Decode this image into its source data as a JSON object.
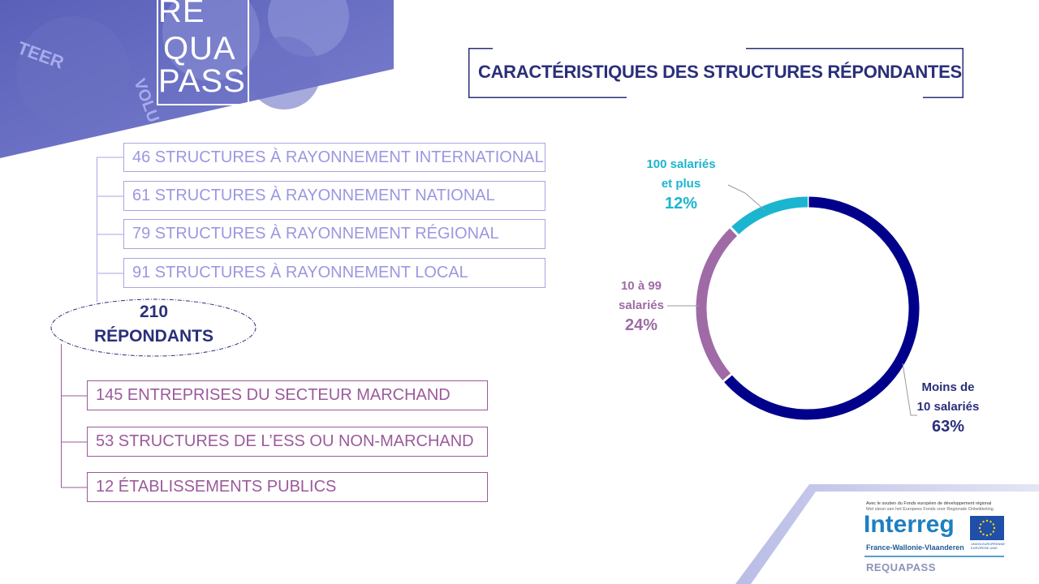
{
  "brand": {
    "logo_lines": [
      "RE",
      "QUA",
      "PASS"
    ],
    "banner_words": [
      "TEER",
      "VOLU"
    ]
  },
  "title": "CARACTÉRISTIQUES DES STRUCTURES RÉPONDANTES",
  "respondents": {
    "count": "210",
    "label": "RÉPONDANTS"
  },
  "reach": [
    {
      "label": "46 STRUCTURES À RAYONNEMENT INTERNATIONAL"
    },
    {
      "label": "61 STRUCTURES À RAYONNEMENT NATIONAL"
    },
    {
      "label": "79 STRUCTURES À RAYONNEMENT RÉGIONAL"
    },
    {
      "label": "91 STRUCTURES À RAYONNEMENT LOCAL"
    }
  ],
  "sectors": [
    {
      "label": "145 ENTREPRISES DU SECTEUR MARCHAND"
    },
    {
      "label": "53 STRUCTURES DE L’ESS OU NON-MARCHAND"
    },
    {
      "label": "12 ÉTABLISSEMENTS PUBLICS"
    }
  ],
  "chart_data": {
    "type": "pie",
    "title": "",
    "slices": [
      {
        "line1": "Moins de",
        "line2": "10 salariés",
        "pct_label": "63%",
        "value": 63,
        "color": "#00008b"
      },
      {
        "line1": "10 à 99",
        "line2": "salariés",
        "pct_label": "24%",
        "value": 24,
        "color": "#9f6aa6"
      },
      {
        "line1": "100 salariés",
        "line2": "et plus",
        "pct_label": "12%",
        "value": 12,
        "color": "#1bb5d0"
      }
    ]
  },
  "footer": {
    "support_fr": "Avec le soutien du Fonds européen de développement régional",
    "support_nl": "Met steun van het Europees Fonds voor Regionale Ontwikkeling",
    "interreg": "Interreg",
    "region": "France-Wallonie-Vlaanderen",
    "eu_text_1": "UNION EUROPÉENNE",
    "eu_text_2": "EUROPESE UNIE",
    "project": "REQUAPASS"
  }
}
